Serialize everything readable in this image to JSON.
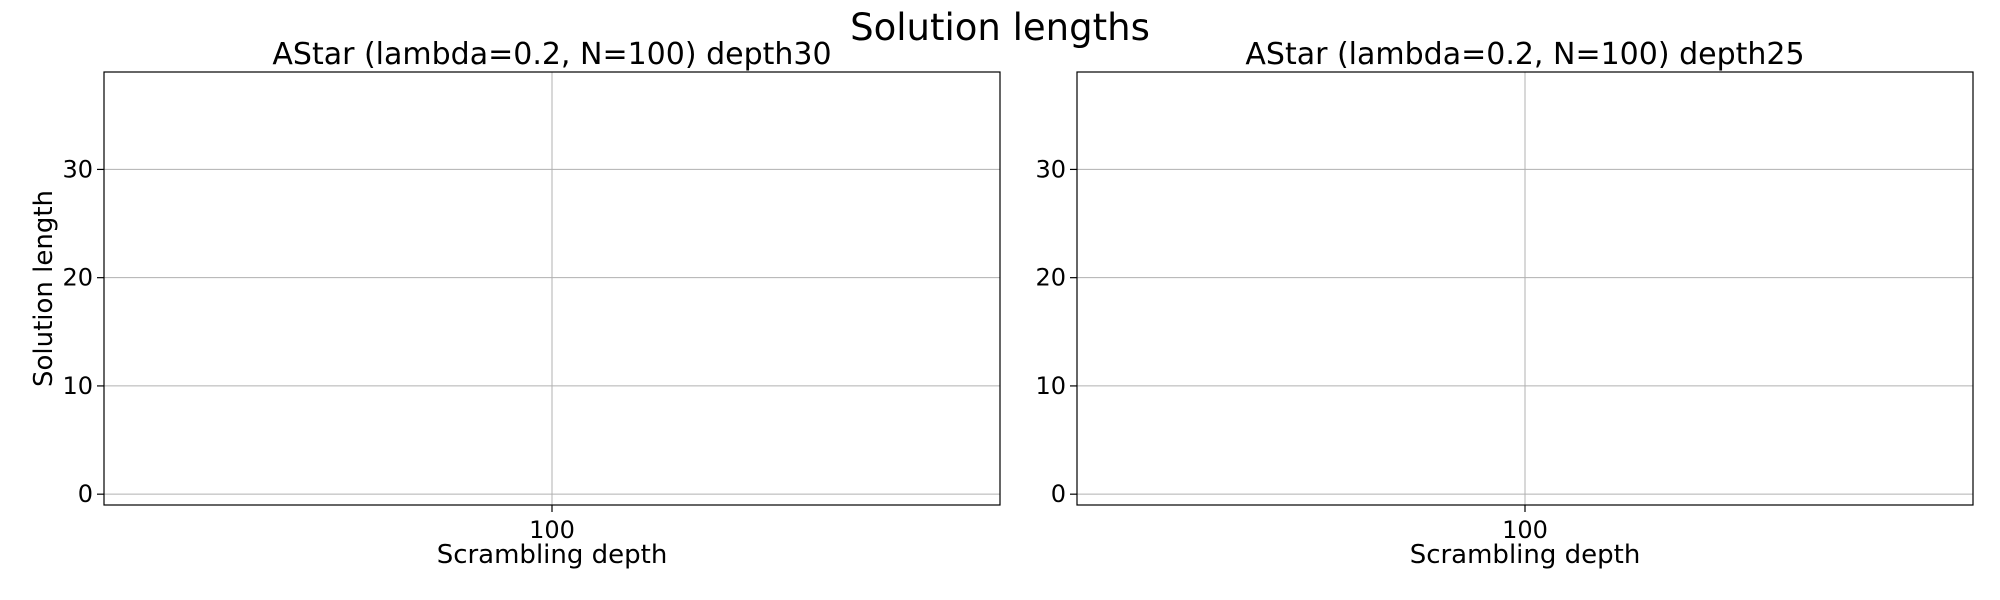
{
  "figure": {
    "title": "Solution lengths"
  },
  "chart_data": [
    {
      "type": "line",
      "title": "AStar (lambda=0.2, N=100) depth30",
      "xlabel": "Scrambling depth",
      "ylabel": "Solution length",
      "x_ticks": [
        100
      ],
      "y_ticks": [
        0,
        10,
        20,
        30
      ],
      "xlim": [
        80,
        120
      ],
      "ylim": [
        -1,
        39
      ],
      "grid": true,
      "series": []
    },
    {
      "type": "line",
      "title": "AStar (lambda=0.2, N=100) depth25",
      "xlabel": "Scrambling depth",
      "ylabel": "",
      "x_ticks": [
        100
      ],
      "y_ticks": [
        0,
        10,
        20,
        30
      ],
      "xlim": [
        80,
        120
      ],
      "ylim": [
        -1,
        39
      ],
      "grid": true,
      "series": []
    }
  ]
}
